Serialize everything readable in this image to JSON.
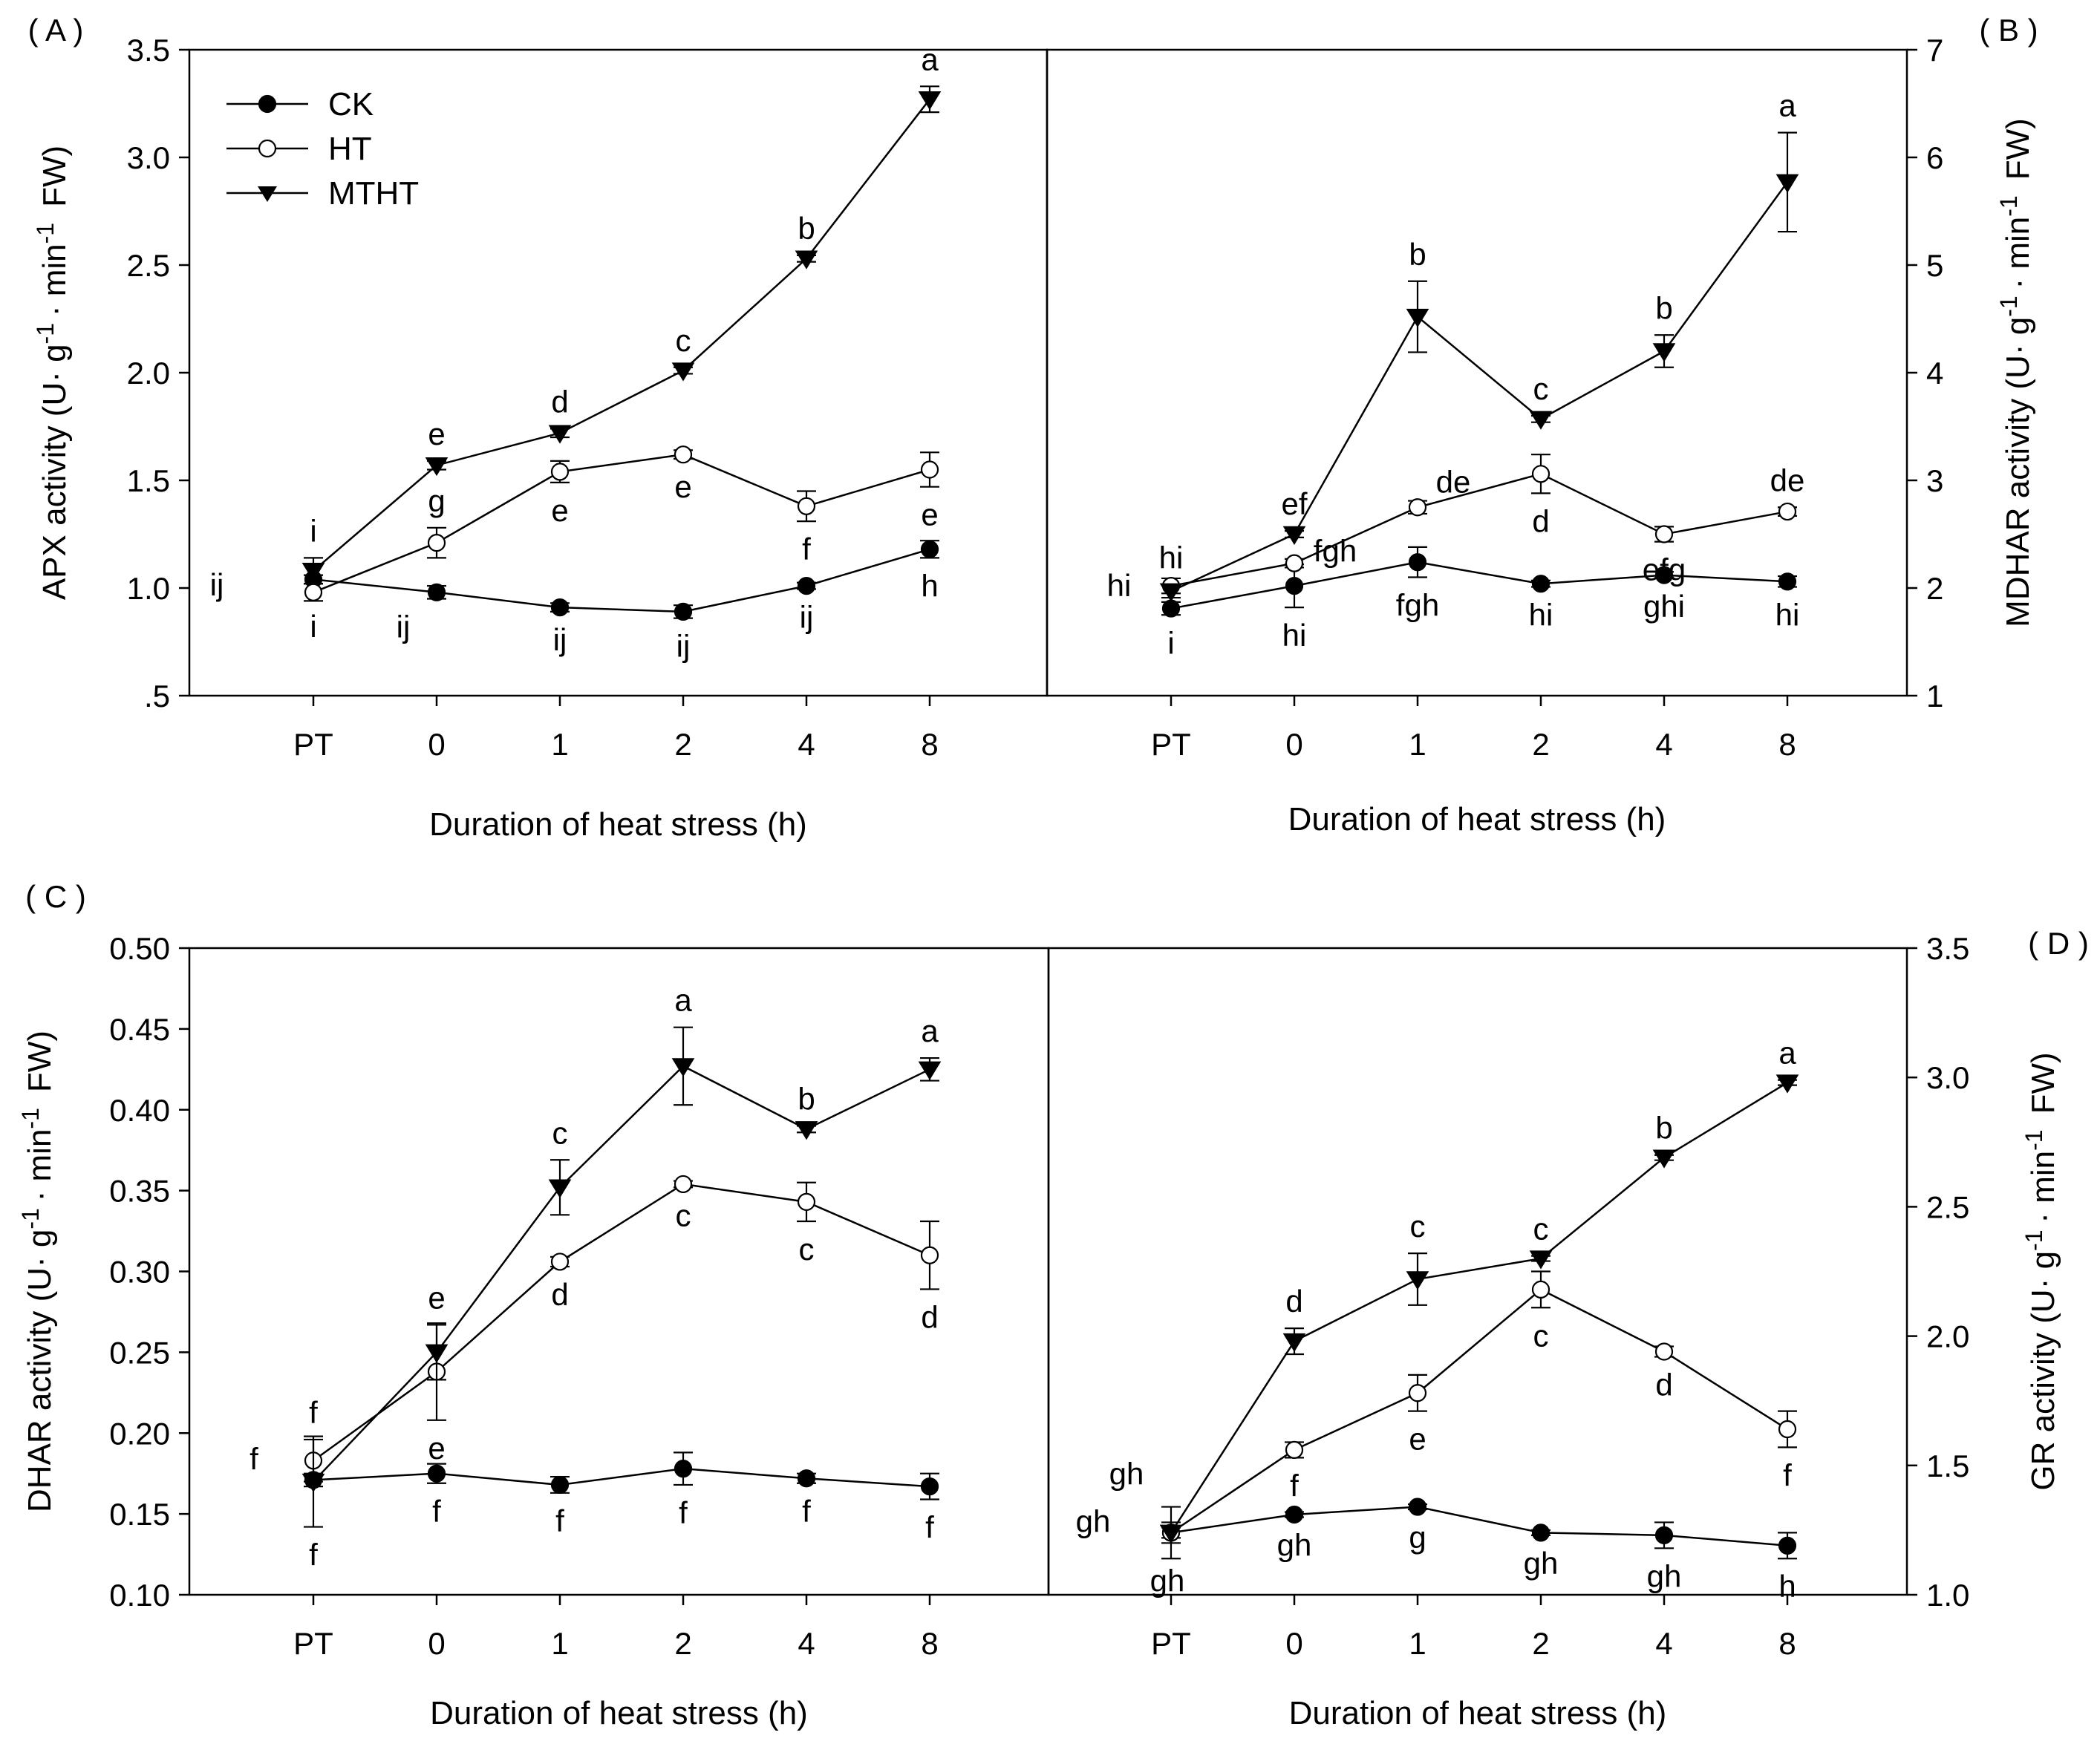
{
  "chart_data": [
    {
      "type": "line",
      "panel_label": "( A )",
      "xlabel": "Duration of heat stress (h)",
      "ylabel": "APX activity (U· g⁻¹· min⁻¹ FW)",
      "categories": [
        "PT",
        "0",
        "1",
        "2",
        "4",
        "8"
      ],
      "ylim": [
        0.5,
        3.5
      ],
      "yticks": [
        ".5",
        "1.0",
        "1.5",
        "2.0",
        "2.5",
        "3.0",
        "3.5"
      ],
      "y_axis_side": "left",
      "legend": {
        "position": "top-left",
        "entries": [
          "CK",
          "HT",
          "MTHT"
        ]
      },
      "series": [
        {
          "name": "CK",
          "marker": "filled-circle",
          "values": [
            1.04,
            0.98,
            0.91,
            0.89,
            1.01,
            1.18
          ],
          "errors": [
            0.02,
            0.03,
            0.02,
            0.03,
            0.015,
            0.04
          ],
          "letters": [
            "i",
            "ij",
            "ij",
            "ij",
            "ij",
            "h"
          ]
        },
        {
          "name": "HT",
          "marker": "open-circle",
          "values": [
            0.98,
            1.21,
            1.54,
            1.62,
            1.38,
            1.55
          ],
          "errors": [
            0.04,
            0.07,
            0.05,
            0.02,
            0.07,
            0.08
          ],
          "letters": [
            "ij",
            "g",
            "e",
            "e",
            "f",
            "e"
          ]
        },
        {
          "name": "MTHT",
          "marker": "filled-triangle-down",
          "values": [
            1.08,
            1.57,
            1.72,
            2.01,
            2.53,
            3.27
          ],
          "errors": [
            0.06,
            0.02,
            0.02,
            0.015,
            0.015,
            0.06
          ],
          "letters": [
            "i",
            "e",
            "d",
            "c",
            "b",
            "a"
          ]
        }
      ]
    },
    {
      "type": "line",
      "panel_label": "( B )",
      "xlabel": "Duration of heat stress (h)",
      "ylabel": "MDHAR activity (U· g⁻¹· min⁻¹ FW)",
      "categories": [
        "PT",
        "0",
        "1",
        "2",
        "4",
        "8"
      ],
      "ylim": [
        1,
        7
      ],
      "yticks": [
        "1",
        "2",
        "3",
        "4",
        "5",
        "6",
        "7"
      ],
      "y_axis_side": "right",
      "series": [
        {
          "name": "CK",
          "marker": "filled-circle",
          "values": [
            1.81,
            2.02,
            2.24,
            2.04,
            2.12,
            2.06
          ],
          "errors": [
            0.06,
            0.2,
            0.14,
            0.03,
            0.03,
            0.05
          ],
          "letters": [
            "i",
            "hi",
            "fgh",
            "hi",
            "ghi",
            "hi"
          ]
        },
        {
          "name": "HT",
          "marker": "open-circle",
          "values": [
            2.02,
            2.23,
            2.75,
            3.06,
            2.5,
            2.71
          ],
          "errors": [
            0.07,
            0.04,
            0.06,
            0.18,
            0.07,
            0.04
          ],
          "letters": [
            "hi",
            "fgh",
            "de",
            "d",
            "efg",
            "de"
          ]
        },
        {
          "name": "MTHT",
          "marker": "filled-triangle-down",
          "values": [
            1.97,
            2.5,
            4.52,
            3.57,
            4.2,
            5.77
          ],
          "errors": [
            0.06,
            0.03,
            0.33,
            0.03,
            0.15,
            0.46
          ],
          "letters": [
            "hi",
            "ef",
            "b",
            "c",
            "b",
            "a"
          ]
        }
      ]
    },
    {
      "type": "line",
      "panel_label": "( C )",
      "xlabel": "Duration of heat stress (h)",
      "ylabel": "DHAR activity (U· g⁻¹· min⁻¹ FW)",
      "categories": [
        "PT",
        "0",
        "1",
        "2",
        "4",
        "8"
      ],
      "ylim": [
        0.1,
        0.5
      ],
      "yticks": [
        "0.10",
        "0.15",
        "0.20",
        "0.25",
        "0.30",
        "0.35",
        "0.40",
        "0.45",
        "0.50"
      ],
      "y_axis_side": "left",
      "series": [
        {
          "name": "CK",
          "marker": "filled-circle",
          "values": [
            0.171,
            0.175,
            0.168,
            0.178,
            0.172,
            0.167
          ],
          "errors": [
            0.004,
            0.006,
            0.005,
            0.01,
            0.003,
            0.008
          ],
          "letters": [
            "f",
            "f",
            "f",
            "f",
            "f",
            "f"
          ]
        },
        {
          "name": "HT",
          "marker": "open-circle",
          "values": [
            0.183,
            0.238,
            0.306,
            0.354,
            0.343,
            0.31
          ],
          "errors": [
            0.013,
            0.03,
            0.003,
            0.002,
            0.012,
            0.021
          ],
          "letters": [
            "f",
            "e",
            "d",
            "c",
            "c",
            "d"
          ]
        },
        {
          "name": "MTHT",
          "marker": "filled-triangle-down",
          "values": [
            0.17,
            0.25,
            0.352,
            0.427,
            0.388,
            0.425
          ],
          "errors": [
            0.028,
            0.017,
            0.017,
            0.024,
            0.002,
            0.007
          ],
          "letters": [
            "f",
            "e",
            "c",
            "a",
            "b",
            "a"
          ]
        }
      ]
    },
    {
      "type": "line",
      "panel_label": "( D )",
      "xlabel": "Duration of heat stress (h)",
      "ylabel": "GR activity (U· g⁻¹· min⁻¹ FW)",
      "categories": [
        "PT",
        "0",
        "1",
        "2",
        "4",
        "8"
      ],
      "ylim": [
        1.0,
        3.5
      ],
      "yticks": [
        "1.0",
        "1.5",
        "2.0",
        "2.5",
        "3.0",
        "3.5"
      ],
      "y_axis_side": "right",
      "series": [
        {
          "name": "CK",
          "marker": "filled-circle",
          "values": [
            1.24,
            1.31,
            1.34,
            1.24,
            1.23,
            1.19
          ],
          "errors": [
            0.02,
            0.01,
            0.01,
            0.01,
            0.05,
            0.05
          ],
          "letters": [
            "gh",
            "gh",
            "g",
            "gh",
            "gh",
            "h"
          ]
        },
        {
          "name": "HT",
          "marker": "open-circle",
          "values": [
            1.24,
            1.56,
            1.78,
            2.18,
            1.94,
            1.64
          ],
          "errors": [
            0.04,
            0.03,
            0.07,
            0.07,
            0.02,
            0.07
          ],
          "letters": [
            "gh",
            "f",
            "e",
            "c",
            "d",
            "f"
          ]
        },
        {
          "name": "MTHT",
          "marker": "filled-triangle-down",
          "values": [
            1.24,
            1.98,
            2.22,
            2.3,
            2.69,
            2.98
          ],
          "errors": [
            0.1,
            0.05,
            0.1,
            0.01,
            0.01,
            0.01
          ],
          "letters": [
            "gh",
            "d",
            "c",
            "c",
            "b",
            "a"
          ]
        }
      ]
    }
  ]
}
